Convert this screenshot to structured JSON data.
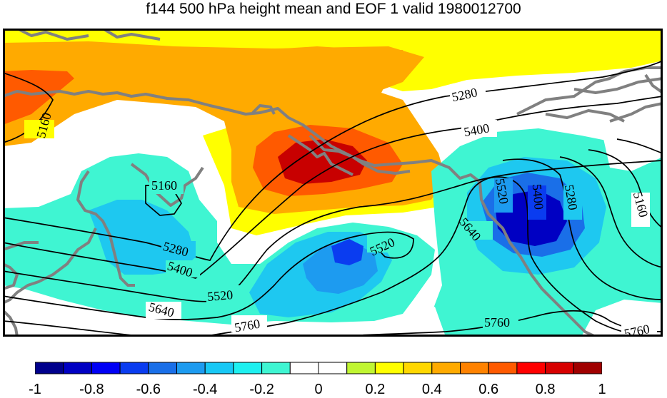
{
  "title": "f144 500 hPa height mean and EOF 1 valid 1980012700",
  "colorbar": {
    "colors": [
      "#00008c",
      "#0000c3",
      "#0000f5",
      "#0a3cf0",
      "#1a6fe8",
      "#1d9bf0",
      "#18c8f5",
      "#1ef0f0",
      "#3ff5d2",
      "#ffffff",
      "#ffffff",
      "#c0f532",
      "#ffff00",
      "#ffd700",
      "#ffaa00",
      "#ff8200",
      "#ff5a00",
      "#ff0000",
      "#d70000",
      "#a00000"
    ],
    "tick_labels": [
      "-1",
      "-0.8",
      "-0.6",
      "-0.4",
      "-0.2",
      "0",
      "0.2",
      "0.4",
      "0.6",
      "0.8",
      "1"
    ]
  },
  "contour_labels": [
    "5160",
    "5160",
    "5280",
    "5400",
    "5520",
    "5640",
    "5760",
    "5280",
    "5400",
    "5520",
    "5640",
    "5760",
    "5280",
    "5400",
    "5520",
    "5160",
    "5760"
  ]
}
